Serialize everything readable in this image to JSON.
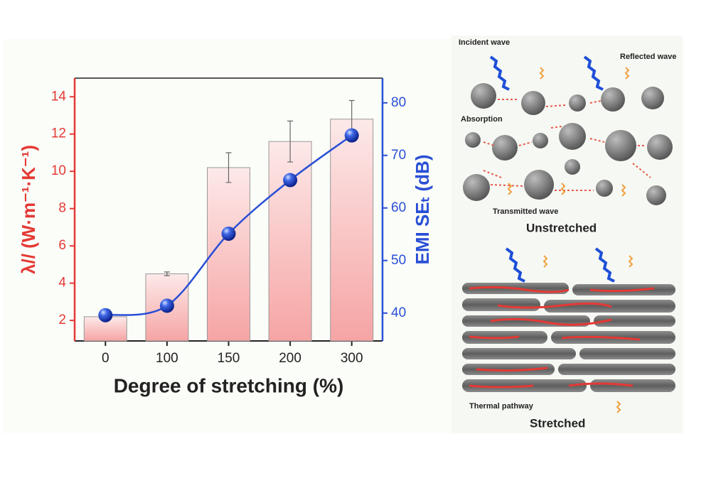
{
  "chart_data": {
    "type": "bar",
    "xlabel": "Degree of stretching (%)",
    "ylabel": "λ// (W·m⁻¹·K⁻¹)",
    "y2label": "EMI SEₜ (dB)",
    "categories": [
      "0",
      "100",
      "150",
      "200",
      "300"
    ],
    "series": [
      {
        "type": "bar",
        "color": "#f4a3a3",
        "values": [
          2.2,
          4.5,
          10.2,
          11.6,
          12.8
        ],
        "errors": [
          0,
          0.1,
          0.8,
          1.1,
          1.0
        ]
      },
      {
        "type": "line",
        "axis": "y2",
        "color": "#2a4fd6",
        "values": [
          39.6,
          41.4,
          55.1,
          65.3,
          73.8
        ]
      }
    ],
    "ylim": [
      0.9,
      15
    ],
    "yticks": [
      2,
      4,
      6,
      8,
      10,
      12,
      14
    ],
    "ycolor": "#e53935",
    "y2lim": [
      34.7,
      84.7
    ],
    "y2ticks": [
      40,
      50,
      60,
      70,
      80
    ],
    "y2color": "#2a4fd6"
  },
  "schematic": {
    "incident": "Incident wave",
    "reflected": "Reflected wave",
    "absorption": "Absorption",
    "transmitted": "Transmitted wave",
    "unstretched": "Unstretched",
    "thermal": "Thermal pathway",
    "stretched": "Stretched"
  }
}
